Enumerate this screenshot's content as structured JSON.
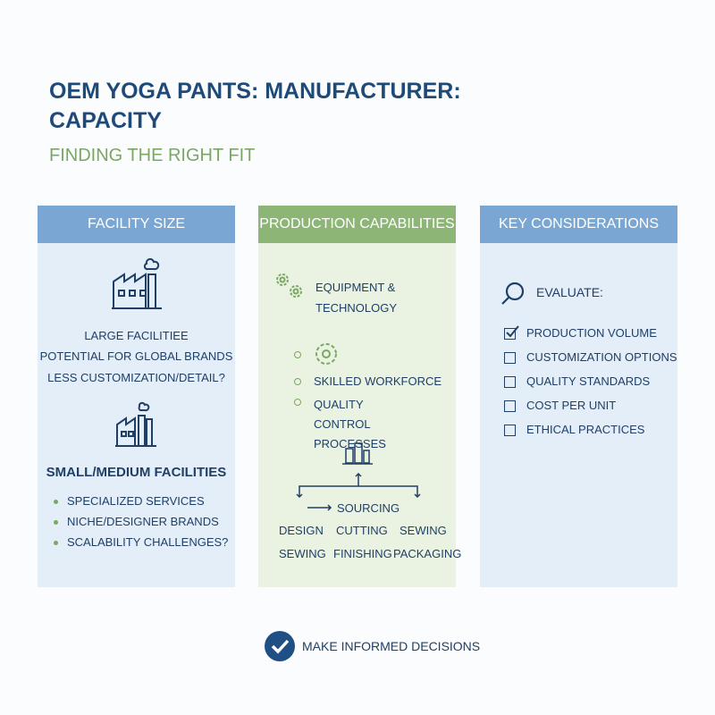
{
  "header": {
    "title": "OEM YOGA PANTS: MANUFACTURER: CAPACITY",
    "subtitle": "FINDING THE RIGHT FIT"
  },
  "columns": [
    {
      "header": "FACILITY SIZE",
      "large_lines": [
        "LARGE FACILITIEE",
        "POTENTIAL FOR GLOBAL BRANDS",
        "LESS CUSTOMIZATION/DETAIL?"
      ],
      "small_title": "SMALL/MEDIUM FACILITIES",
      "small_items": [
        "SPECIALIZED SERVICES",
        "NICHE/DESIGNER BRANDS",
        "SCALABILITY CHALLENGES?"
      ]
    },
    {
      "header": "PRODUCTION CAPABILITIES",
      "equipment": "EQUIPMENT & TECHNOLOGY",
      "items": [
        "SKILLED WORKFORCE",
        "QUALITY CONTROL PROCESSES"
      ],
      "flow_top": "SOURCING",
      "flow_grid": [
        [
          "DESIGN",
          "CUTTING",
          "SEWING"
        ],
        [
          "SEWING",
          "FINISHING",
          "PACKAGING"
        ]
      ]
    },
    {
      "header": "KEY CONSIDERATIONS",
      "evaluate": "EVALUATE:",
      "checklist": [
        {
          "label": "PRODUCTION VOLUME",
          "checked": true
        },
        {
          "label": "CUSTOMIZATION OPTIONS",
          "checked": false
        },
        {
          "label": "QUALITY STANDARDS",
          "checked": false
        },
        {
          "label": "COST PER UNIT",
          "checked": false
        },
        {
          "label": "ETHICAL PRACTICES",
          "checked": false
        }
      ]
    }
  ],
  "footer": {
    "text": "MAKE INFORMED DECISIONS"
  }
}
